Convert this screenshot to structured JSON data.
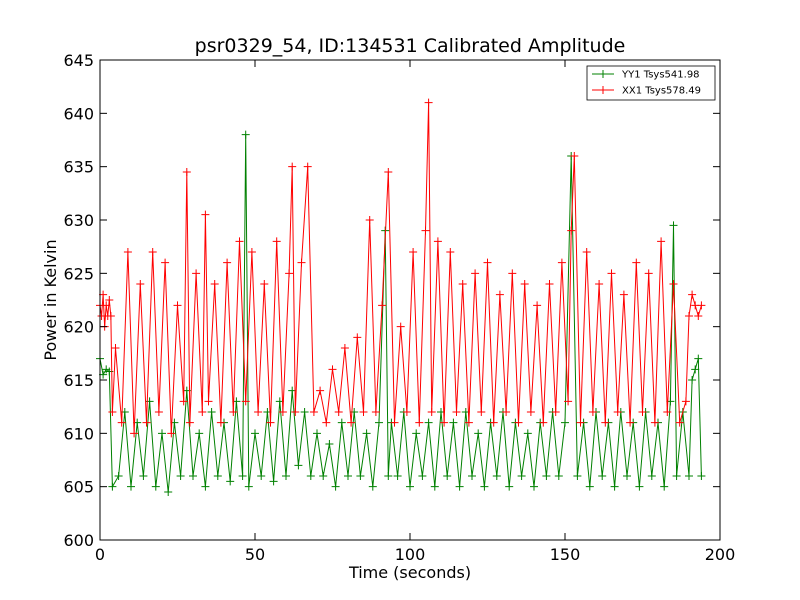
{
  "chart_data": {
    "type": "line",
    "title": "psr0329_54, ID:134531 Calibrated Amplitude",
    "xlabel": "Time (seconds)",
    "ylabel": "Power in Kelvin",
    "xlim": [
      0,
      200
    ],
    "ylim": [
      600,
      645
    ],
    "xticks": [
      "0",
      "50",
      "100",
      "150",
      "200"
    ],
    "yticks": [
      "600",
      "605",
      "610",
      "615",
      "620",
      "625",
      "630",
      "635",
      "640",
      "645"
    ],
    "grid": false,
    "legend_position": "top-right",
    "series": [
      {
        "name": "YY1 Tsys541.98",
        "color": "#008000",
        "marker": "+",
        "x": [
          0,
          1,
          2,
          3,
          4,
          6,
          8,
          10,
          12,
          14,
          16,
          18,
          20,
          22,
          24,
          26,
          28,
          30,
          32,
          34,
          36,
          38,
          40,
          42,
          44,
          46,
          47,
          48,
          50,
          52,
          54,
          56,
          58,
          60,
          62,
          64,
          66,
          68,
          70,
          72,
          74,
          76,
          78,
          80,
          82,
          84,
          86,
          88,
          90,
          92,
          93,
          94,
          96,
          98,
          100,
          102,
          104,
          106,
          108,
          110,
          112,
          114,
          116,
          118,
          120,
          122,
          124,
          126,
          128,
          130,
          132,
          134,
          136,
          138,
          140,
          142,
          144,
          146,
          148,
          150,
          152,
          154,
          156,
          158,
          160,
          162,
          164,
          166,
          168,
          170,
          172,
          174,
          176,
          178,
          180,
          182,
          184,
          185,
          186,
          188,
          190,
          191,
          192,
          193,
          194
        ],
        "y": [
          617,
          615.5,
          616,
          615.8,
          605,
          606,
          612,
          605,
          611,
          606,
          613,
          605,
          610,
          604.5,
          611,
          606,
          614,
          606,
          610,
          605,
          612,
          606,
          611,
          605.5,
          613,
          606,
          638,
          605,
          610,
          606,
          612,
          605.5,
          613,
          606,
          614,
          607,
          612,
          606,
          610,
          606,
          609,
          605,
          611,
          606,
          612,
          606,
          610,
          605,
          611,
          629,
          606,
          611,
          606,
          612,
          605,
          610,
          606,
          611,
          605,
          612,
          606,
          611,
          605,
          612,
          606,
          610,
          605,
          611,
          606,
          612,
          605,
          611,
          606,
          610,
          605,
          611,
          606,
          612,
          606,
          611,
          636,
          606,
          611,
          605,
          612,
          606,
          611,
          605,
          612,
          606,
          611,
          605,
          612,
          606,
          611,
          605,
          613,
          629.5,
          606,
          612,
          606,
          615,
          616,
          617,
          606
        ]
      },
      {
        "name": "XX1 Tsys578.49",
        "color": "#ff0000",
        "marker": "+",
        "x": [
          0,
          0.5,
          1,
          1.5,
          2,
          2.5,
          3,
          3.5,
          4,
          5,
          7,
          9,
          11,
          13,
          15,
          17,
          19,
          21,
          23,
          25,
          27,
          28,
          29,
          31,
          33,
          34,
          35,
          37,
          39,
          41,
          43,
          45,
          47,
          49,
          51,
          53,
          55,
          57,
          59,
          61,
          62,
          63,
          65,
          67,
          69,
          71,
          73,
          75,
          77,
          79,
          81,
          83,
          85,
          87,
          89,
          91,
          93,
          95,
          97,
          99,
          101,
          103,
          105,
          106,
          107,
          109,
          111,
          113,
          115,
          117,
          119,
          121,
          123,
          125,
          127,
          129,
          131,
          133,
          135,
          137,
          139,
          141,
          143,
          145,
          147,
          149,
          151,
          152,
          153,
          155,
          157,
          159,
          161,
          163,
          165,
          167,
          169,
          171,
          173,
          175,
          177,
          179,
          181,
          183,
          185,
          187,
          189,
          190,
          191,
          192,
          193,
          194
        ],
        "y": [
          622,
          621,
          623,
          620,
          622,
          621,
          622.5,
          621,
          612,
          618,
          611,
          627,
          610,
          624,
          611,
          627,
          612,
          626,
          610,
          622,
          613,
          634.5,
          611,
          625,
          612,
          630.5,
          613,
          624,
          611,
          626,
          612,
          628,
          613,
          627,
          612,
          624,
          611,
          628,
          612,
          625,
          635,
          612,
          626,
          635,
          612,
          614,
          611,
          616,
          612,
          618,
          611,
          619,
          612,
          630,
          612,
          622,
          634.5,
          611,
          620,
          612,
          627,
          611,
          629,
          641,
          612,
          628,
          611,
          627,
          612,
          624,
          611,
          625,
          612,
          626,
          611,
          623,
          612,
          625,
          611,
          624,
          612,
          622,
          611,
          624,
          612,
          626,
          613,
          629,
          636,
          611,
          627,
          612,
          624,
          611,
          625,
          612,
          623,
          611,
          626,
          612,
          625,
          611,
          628,
          612,
          624,
          611,
          613,
          621,
          623,
          622,
          621,
          622
        ]
      }
    ]
  }
}
